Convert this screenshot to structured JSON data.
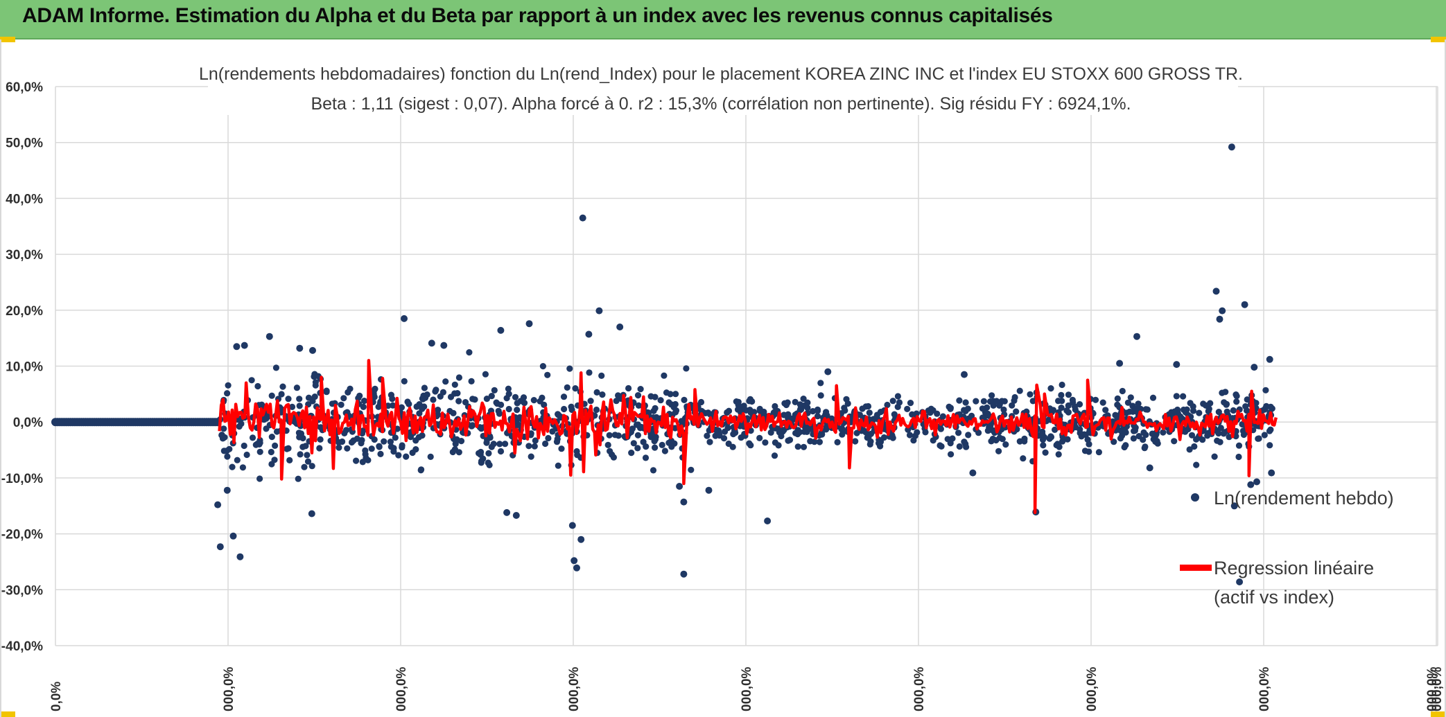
{
  "header": {
    "title": "ADAM Informe. Estimation du Alpha et du Beta par rapport à un index avec les revenus connus capitalisés",
    "background": "#7cc576",
    "accent": "#f2c400"
  },
  "chart_data": {
    "type": "scatter",
    "title": "Ln(rendements hebdomadaires) fonction du Ln(rend_Index) pour le placement KOREA ZINC INC et l'index EU STOXX 600 GROSS TR.",
    "subtitle": "Beta : 1,11 (sigest : 0,07). Alpha forcé à 0. r2 : 15,3% (corrélation non pertinente). Sig résidu FY : 6924,1%.",
    "ylim": [
      -40,
      60
    ],
    "y_ticks": [
      "60,0%",
      "50,0%",
      "40,0%",
      "30,0%",
      "20,0%",
      "10,0%",
      "0,0%",
      "-10,0%",
      "-20,0%",
      "-30,0%",
      "-40,0%"
    ],
    "x_ticks": [
      "0,0%",
      "000,0%",
      "000,0%",
      "000,0%",
      "000,0%",
      "000,0%",
      "000,0%",
      "000,0%",
      "000,0%"
    ],
    "grid": true,
    "legend": [
      {
        "label": "Ln(rendement hebdo)",
        "color": "#1f3864"
      },
      {
        "label": "Regression linéaire",
        "label2": "(actif vs index)",
        "color": "#ff0000"
      }
    ],
    "series": [
      {
        "name": "Ln(rendement hebdo)",
        "color": "#1f3864",
        "flat_zero_segment": [
          0,
          0.19
        ],
        "outliers": [
          [
            0.188,
            -14.8
          ],
          [
            0.191,
            -22.3
          ],
          [
            0.199,
            -12.2
          ],
          [
            0.206,
            -20.4
          ],
          [
            0.214,
            -24.1
          ],
          [
            0.21,
            13.5
          ],
          [
            0.219,
            13.7
          ],
          [
            0.248,
            15.3
          ],
          [
            0.283,
            13.2
          ],
          [
            0.297,
            -16.4
          ],
          [
            0.298,
            12.8
          ],
          [
            0.404,
            18.5
          ],
          [
            0.436,
            14.1
          ],
          [
            0.45,
            13.7
          ],
          [
            0.516,
            16.4
          ],
          [
            0.523,
            -16.2
          ],
          [
            0.534,
            -16.7
          ],
          [
            0.549,
            17.6
          ],
          [
            0.599,
            -18.5
          ],
          [
            0.601,
            -24.8
          ],
          [
            0.604,
            -26.1
          ],
          [
            0.609,
            -21.0
          ],
          [
            0.611,
            36.5
          ],
          [
            0.618,
            15.7
          ],
          [
            0.63,
            19.9
          ],
          [
            0.654,
            17.0
          ],
          [
            0.728,
            -27.2
          ],
          [
            0.723,
            -11.5
          ],
          [
            0.728,
            -14.3
          ],
          [
            0.757,
            -12.2
          ],
          [
            0.825,
            -17.7
          ],
          [
            0.895,
            9.0
          ],
          [
            1.053,
            8.5
          ],
          [
            1.063,
            -9.1
          ],
          [
            1.136,
            -16.1
          ],
          [
            1.233,
            10.5
          ],
          [
            1.253,
            15.3
          ],
          [
            1.268,
            -8.2
          ],
          [
            1.299,
            10.3
          ],
          [
            1.345,
            23.4
          ],
          [
            1.349,
            18.4
          ],
          [
            1.352,
            19.9
          ],
          [
            1.363,
            49.2
          ],
          [
            1.366,
            -15.0
          ],
          [
            1.372,
            -28.6
          ],
          [
            1.378,
            21.0
          ],
          [
            1.385,
            -11.2
          ],
          [
            1.389,
            9.8
          ],
          [
            1.392,
            -10.7
          ],
          [
            1.407,
            11.2
          ],
          [
            1.409,
            -9.1
          ]
        ]
      },
      {
        "name": "Regression linéaire",
        "color": "#ff0000",
        "spikes": [
          [
            0.221,
            7.0
          ],
          [
            0.262,
            -10.2
          ],
          [
            0.308,
            8.0
          ],
          [
            0.322,
            -8.3
          ],
          [
            0.363,
            11.0
          ],
          [
            0.379,
            7.8
          ],
          [
            0.597,
            -9.5
          ],
          [
            0.609,
            8.8
          ],
          [
            0.612,
            -8.9
          ],
          [
            0.626,
            -5.9
          ],
          [
            0.728,
            -11.0
          ],
          [
            0.741,
            5.8
          ],
          [
            0.905,
            6.5
          ],
          [
            0.92,
            -8.2
          ],
          [
            1.135,
            -16.2
          ],
          [
            1.137,
            6.6
          ],
          [
            1.146,
            5.0
          ],
          [
            1.196,
            7.5
          ],
          [
            1.383,
            -9.6
          ],
          [
            1.386,
            5.5
          ]
        ]
      }
    ]
  }
}
